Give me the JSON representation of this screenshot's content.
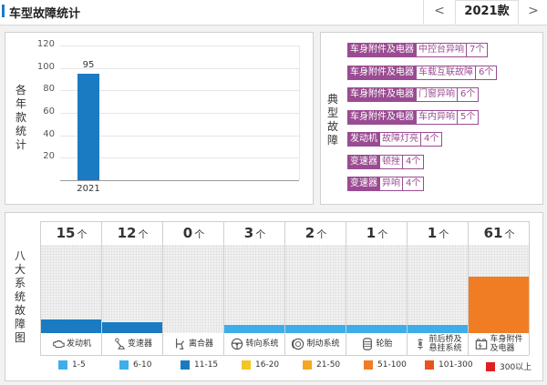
{
  "header": {
    "title": "车型故障统计",
    "prev_label": "<",
    "year": "2021款",
    "next_label": ">"
  },
  "yearly_chart": {
    "side_label": [
      "各",
      "年",
      "款",
      "统",
      "计"
    ],
    "chart_data": {
      "type": "bar",
      "categories": [
        "2021"
      ],
      "values": [
        95
      ],
      "ylim": [
        0,
        120
      ],
      "yticks": [
        20,
        40,
        60,
        80,
        100,
        120
      ],
      "grid": true,
      "color": "#1a7bc2"
    }
  },
  "typical_faults": {
    "side_label": [
      "典",
      "型",
      "故",
      "障"
    ],
    "items": [
      {
        "category": "车身附件及电器",
        "desc": "中控台异响",
        "count": "7个"
      },
      {
        "category": "车身附件及电器",
        "desc": "车载互联故障",
        "count": "6个"
      },
      {
        "category": "车身附件及电器",
        "desc": "门窗异响",
        "count": "6个"
      },
      {
        "category": "车身附件及电器",
        "desc": "车内异响",
        "count": "5个"
      },
      {
        "category": "发动机",
        "desc": "故障灯亮",
        "count": "4个"
      },
      {
        "category": "变速器",
        "desc": "顿挫",
        "count": "4个"
      },
      {
        "category": "变速器",
        "desc": "异响",
        "count": "4个"
      }
    ]
  },
  "systems": {
    "side_label": [
      "八",
      "大",
      "系",
      "统",
      "故",
      "障",
      "图"
    ],
    "unit": "个",
    "items": [
      {
        "name": "发动机",
        "count": 15,
        "color": "#1a7bc2",
        "icon": "engine-icon"
      },
      {
        "name": "变速器",
        "count": 12,
        "color": "#1a7bc2",
        "icon": "gear-shift-icon"
      },
      {
        "name": "离合器",
        "count": 0,
        "color": "#1a7bc2",
        "icon": "clutch-pedal-icon"
      },
      {
        "name": "转向系统",
        "count": 3,
        "color": "#3daeea",
        "icon": "steering-wheel-icon"
      },
      {
        "name": "制动系统",
        "count": 2,
        "color": "#3daeea",
        "icon": "brake-disc-icon"
      },
      {
        "name": "轮胎",
        "count": 1,
        "color": "#3daeea",
        "icon": "tire-icon"
      },
      {
        "name": "前后桥及悬挂系统",
        "count": 1,
        "color": "#3daeea",
        "icon": "suspension-icon"
      },
      {
        "name": "车身附件及电器",
        "count": 61,
        "color": "#f07d23",
        "icon": "car-battery-icon"
      }
    ],
    "label_lines": [
      [
        "发动机"
      ],
      [
        "变速器"
      ],
      [
        "离合器"
      ],
      [
        "转向系统"
      ],
      [
        "制动系统"
      ],
      [
        "轮胎"
      ],
      [
        "前后桥及",
        "悬挂系统"
      ],
      [
        "车身附件",
        "及电器"
      ]
    ]
  },
  "legend": [
    {
      "label": "1-5",
      "color": "#3daeea"
    },
    {
      "label": "6-10",
      "color": "#3daeea"
    },
    {
      "label": "11-15",
      "color": "#1a7bc2"
    },
    {
      "label": "16-20",
      "color": "#f3c623"
    },
    {
      "label": "21-50",
      "color": "#f5a623"
    },
    {
      "label": "51-100",
      "color": "#f07d23"
    },
    {
      "label": "101-300",
      "color": "#e8541e"
    },
    {
      "label": "300以上",
      "color": "#e02020"
    }
  ]
}
